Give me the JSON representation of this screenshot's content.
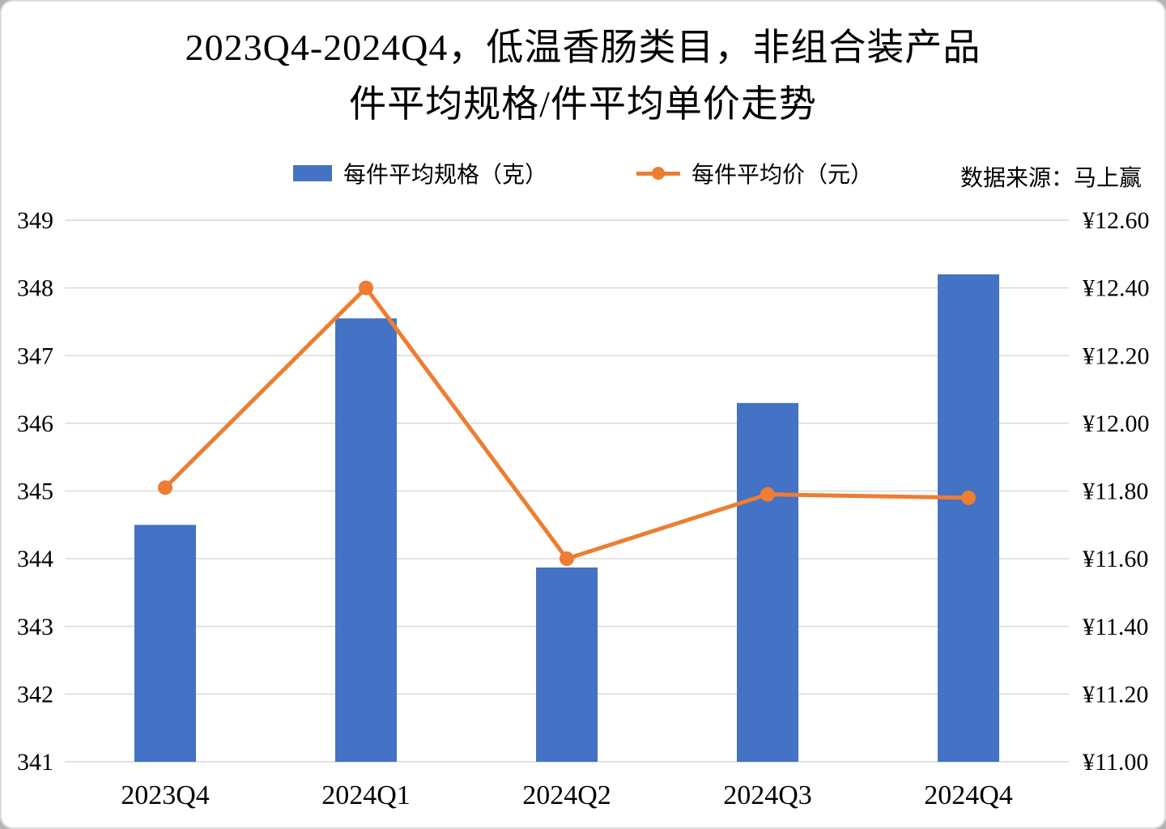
{
  "title": {
    "line1": "2023Q4-2024Q4，低温香肠类目，非组合装产品",
    "line2": "件平均规格/件平均单价走势"
  },
  "legend": {
    "bar_label": "每件平均规格（克）",
    "line_label": "每件平均价（元）"
  },
  "source": "数据来源：马上赢",
  "colors": {
    "bar": "#4472C4",
    "line": "#ED7D31",
    "grid": "#D9D9D9",
    "text": "#000000"
  },
  "chart_data": {
    "type": "combo",
    "categories": [
      "2023Q4",
      "2024Q1",
      "2024Q2",
      "2024Q3",
      "2024Q4"
    ],
    "series": [
      {
        "name": "每件平均规格（克）",
        "type": "bar",
        "axis": "left",
        "unit": "克",
        "values": [
          344.5,
          347.55,
          343.87,
          346.3,
          348.2
        ]
      },
      {
        "name": "每件平均价（元）",
        "type": "line",
        "axis": "right",
        "unit": "元",
        "values": [
          11.81,
          12.4,
          11.6,
          11.79,
          11.78
        ]
      }
    ],
    "left_axis": {
      "min": 341,
      "max": 349,
      "step": 1
    },
    "right_axis": {
      "min": 11.0,
      "max": 12.6,
      "step": 0.2,
      "prefix": "¥",
      "decimals": 2
    },
    "grid": true,
    "legend_position": "top"
  }
}
